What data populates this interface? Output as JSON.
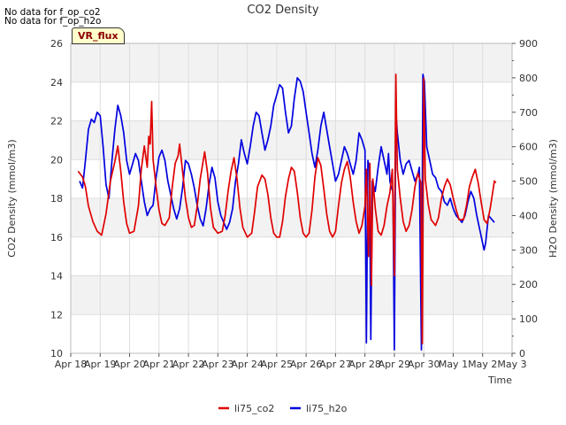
{
  "notices": [
    "No data for f_op_co2",
    "No data for f_op_h2o"
  ],
  "badge": "VR_flux",
  "chart_data": {
    "type": "line",
    "title": "CO2 Density",
    "xlabel": "Time",
    "ylabel": "CO2 Density (mmol/m3)",
    "y2label": "H2O Density (mmol/m3)",
    "x_ticks": [
      "Apr 18",
      "Apr 19",
      "Apr 20",
      "Apr 21",
      "Apr 22",
      "Apr 23",
      "Apr 24",
      "Apr 25",
      "Apr 26",
      "Apr 27",
      "Apr 28",
      "Apr 29",
      "Apr 30",
      "May 1",
      "May 2",
      "May 3"
    ],
    "xlim": [
      0,
      15
    ],
    "ylim": [
      10,
      26
    ],
    "y_ticks": [
      10,
      12,
      14,
      16,
      18,
      20,
      22,
      24,
      26
    ],
    "y2lim": [
      0,
      900
    ],
    "y2_ticks": [
      0,
      100,
      200,
      300,
      400,
      500,
      600,
      700,
      800,
      900
    ],
    "grid": true,
    "legend_position": "bottom-center",
    "series": [
      {
        "name": "li75_co2",
        "axis": "left",
        "color": "#e00000",
        "points": [
          [
            0.25,
            19.4
          ],
          [
            0.4,
            19.1
          ],
          [
            0.5,
            18.6
          ],
          [
            0.6,
            17.6
          ],
          [
            0.75,
            16.8
          ],
          [
            0.9,
            16.3
          ],
          [
            1.05,
            16.1
          ],
          [
            1.2,
            17.2
          ],
          [
            1.35,
            18.9
          ],
          [
            1.5,
            19.9
          ],
          [
            1.6,
            20.7
          ],
          [
            1.7,
            19.4
          ],
          [
            1.8,
            17.8
          ],
          [
            1.9,
            16.7
          ],
          [
            2.0,
            16.2
          ],
          [
            2.15,
            16.3
          ],
          [
            2.3,
            17.6
          ],
          [
            2.4,
            19.5
          ],
          [
            2.5,
            20.7
          ],
          [
            2.6,
            19.6
          ],
          [
            2.65,
            21.2
          ],
          [
            2.7,
            20.8
          ],
          [
            2.75,
            23.0
          ],
          [
            2.8,
            20.0
          ],
          [
            2.9,
            18.6
          ],
          [
            3.0,
            17.4
          ],
          [
            3.1,
            16.7
          ],
          [
            3.2,
            16.6
          ],
          [
            3.35,
            17.0
          ],
          [
            3.45,
            18.6
          ],
          [
            3.55,
            19.8
          ],
          [
            3.65,
            20.2
          ],
          [
            3.7,
            20.8
          ],
          [
            3.8,
            19.4
          ],
          [
            3.9,
            18.0
          ],
          [
            4.0,
            17.0
          ],
          [
            4.1,
            16.5
          ],
          [
            4.2,
            16.6
          ],
          [
            4.3,
            17.6
          ],
          [
            4.4,
            19.0
          ],
          [
            4.55,
            20.4
          ],
          [
            4.65,
            19.3
          ],
          [
            4.75,
            17.5
          ],
          [
            4.85,
            16.5
          ],
          [
            5.0,
            16.2
          ],
          [
            5.15,
            16.3
          ],
          [
            5.25,
            17.1
          ],
          [
            5.35,
            18.4
          ],
          [
            5.45,
            19.4
          ],
          [
            5.55,
            20.1
          ],
          [
            5.65,
            19.0
          ],
          [
            5.75,
            17.5
          ],
          [
            5.85,
            16.5
          ],
          [
            6.0,
            16.0
          ],
          [
            6.15,
            16.2
          ],
          [
            6.25,
            17.3
          ],
          [
            6.35,
            18.6
          ],
          [
            6.5,
            19.2
          ],
          [
            6.6,
            19.0
          ],
          [
            6.7,
            18.2
          ],
          [
            6.8,
            17.0
          ],
          [
            6.9,
            16.2
          ],
          [
            7.0,
            16.0
          ],
          [
            7.1,
            16.0
          ],
          [
            7.2,
            16.8
          ],
          [
            7.3,
            18.1
          ],
          [
            7.4,
            19.0
          ],
          [
            7.5,
            19.6
          ],
          [
            7.6,
            19.4
          ],
          [
            7.7,
            18.3
          ],
          [
            7.8,
            17.0
          ],
          [
            7.9,
            16.2
          ],
          [
            8.0,
            16.0
          ],
          [
            8.1,
            16.2
          ],
          [
            8.2,
            17.4
          ],
          [
            8.3,
            19.1
          ],
          [
            8.4,
            20.1
          ],
          [
            8.5,
            19.7
          ],
          [
            8.6,
            18.5
          ],
          [
            8.7,
            17.2
          ],
          [
            8.8,
            16.3
          ],
          [
            8.9,
            16.0
          ],
          [
            9.0,
            16.3
          ],
          [
            9.1,
            17.6
          ],
          [
            9.2,
            18.8
          ],
          [
            9.3,
            19.5
          ],
          [
            9.4,
            19.9
          ],
          [
            9.5,
            19.1
          ],
          [
            9.6,
            17.8
          ],
          [
            9.7,
            16.8
          ],
          [
            9.8,
            16.2
          ],
          [
            9.9,
            16.6
          ],
          [
            10.0,
            17.6
          ],
          [
            10.05,
            19.5
          ],
          [
            10.12,
            15.0
          ],
          [
            10.17,
            19.8
          ],
          [
            10.22,
            13.5
          ],
          [
            10.27,
            19.0
          ],
          [
            10.35,
            17.5
          ],
          [
            10.45,
            16.3
          ],
          [
            10.55,
            16.1
          ],
          [
            10.65,
            16.6
          ],
          [
            10.75,
            17.6
          ],
          [
            10.85,
            18.3
          ],
          [
            10.93,
            19.5
          ],
          [
            11.0,
            14.0
          ],
          [
            11.05,
            24.4
          ],
          [
            11.1,
            19.5
          ],
          [
            11.2,
            18.0
          ],
          [
            11.3,
            16.8
          ],
          [
            11.4,
            16.3
          ],
          [
            11.5,
            16.6
          ],
          [
            11.6,
            17.4
          ],
          [
            11.7,
            18.6
          ],
          [
            11.8,
            19.3
          ],
          [
            11.9,
            18.8
          ],
          [
            11.95,
            10.5
          ],
          [
            12.0,
            24.2
          ],
          [
            12.05,
            19.0
          ],
          [
            12.15,
            17.7
          ],
          [
            12.25,
            16.9
          ],
          [
            12.4,
            16.6
          ],
          [
            12.5,
            17.0
          ],
          [
            12.6,
            18.0
          ],
          [
            12.7,
            18.6
          ],
          [
            12.8,
            19.0
          ],
          [
            12.9,
            18.7
          ],
          [
            13.0,
            18.0
          ],
          [
            13.1,
            17.4
          ],
          [
            13.2,
            16.9
          ],
          [
            13.35,
            16.9
          ],
          [
            13.45,
            17.6
          ],
          [
            13.55,
            18.6
          ],
          [
            13.65,
            19.1
          ],
          [
            13.75,
            19.5
          ],
          [
            13.85,
            18.8
          ],
          [
            13.95,
            17.8
          ],
          [
            14.05,
            16.9
          ],
          [
            14.15,
            16.7
          ],
          [
            14.25,
            17.4
          ],
          [
            14.35,
            18.4
          ],
          [
            14.4,
            18.9
          ],
          [
            14.45,
            18.8
          ]
        ]
      },
      {
        "name": "li75_h2o",
        "axis": "right",
        "color": "#0000e0",
        "points": [
          [
            0.3,
            500
          ],
          [
            0.4,
            480
          ],
          [
            0.5,
            560
          ],
          [
            0.6,
            650
          ],
          [
            0.7,
            680
          ],
          [
            0.8,
            670
          ],
          [
            0.9,
            700
          ],
          [
            1.0,
            690
          ],
          [
            1.1,
            600
          ],
          [
            1.2,
            490
          ],
          [
            1.3,
            450
          ],
          [
            1.4,
            560
          ],
          [
            1.5,
            650
          ],
          [
            1.6,
            720
          ],
          [
            1.7,
            690
          ],
          [
            1.8,
            640
          ],
          [
            1.9,
            560
          ],
          [
            2.0,
            520
          ],
          [
            2.1,
            550
          ],
          [
            2.2,
            580
          ],
          [
            2.3,
            560
          ],
          [
            2.4,
            500
          ],
          [
            2.5,
            440
          ],
          [
            2.6,
            400
          ],
          [
            2.7,
            420
          ],
          [
            2.8,
            430
          ],
          [
            2.9,
            510
          ],
          [
            3.0,
            570
          ],
          [
            3.1,
            590
          ],
          [
            3.2,
            560
          ],
          [
            3.3,
            500
          ],
          [
            3.4,
            460
          ],
          [
            3.5,
            420
          ],
          [
            3.6,
            390
          ],
          [
            3.7,
            420
          ],
          [
            3.8,
            480
          ],
          [
            3.9,
            560
          ],
          [
            4.0,
            550
          ],
          [
            4.1,
            520
          ],
          [
            4.2,
            480
          ],
          [
            4.3,
            430
          ],
          [
            4.4,
            390
          ],
          [
            4.5,
            370
          ],
          [
            4.6,
            420
          ],
          [
            4.7,
            490
          ],
          [
            4.8,
            540
          ],
          [
            4.9,
            510
          ],
          [
            5.0,
            440
          ],
          [
            5.1,
            400
          ],
          [
            5.2,
            380
          ],
          [
            5.3,
            360
          ],
          [
            5.4,
            380
          ],
          [
            5.5,
            420
          ],
          [
            5.6,
            500
          ],
          [
            5.7,
            550
          ],
          [
            5.8,
            620
          ],
          [
            5.9,
            580
          ],
          [
            6.0,
            550
          ],
          [
            6.1,
            600
          ],
          [
            6.2,
            660
          ],
          [
            6.3,
            700
          ],
          [
            6.4,
            690
          ],
          [
            6.5,
            640
          ],
          [
            6.6,
            590
          ],
          [
            6.7,
            620
          ],
          [
            6.8,
            660
          ],
          [
            6.9,
            720
          ],
          [
            7.0,
            750
          ],
          [
            7.1,
            780
          ],
          [
            7.2,
            770
          ],
          [
            7.3,
            700
          ],
          [
            7.4,
            640
          ],
          [
            7.5,
            660
          ],
          [
            7.6,
            740
          ],
          [
            7.7,
            800
          ],
          [
            7.8,
            790
          ],
          [
            7.9,
            760
          ],
          [
            8.0,
            700
          ],
          [
            8.1,
            640
          ],
          [
            8.2,
            580
          ],
          [
            8.3,
            540
          ],
          [
            8.4,
            590
          ],
          [
            8.5,
            660
          ],
          [
            8.6,
            700
          ],
          [
            8.7,
            650
          ],
          [
            8.8,
            600
          ],
          [
            8.9,
            550
          ],
          [
            9.0,
            500
          ],
          [
            9.1,
            520
          ],
          [
            9.2,
            560
          ],
          [
            9.3,
            600
          ],
          [
            9.4,
            580
          ],
          [
            9.5,
            550
          ],
          [
            9.6,
            520
          ],
          [
            9.7,
            560
          ],
          [
            9.8,
            640
          ],
          [
            9.9,
            620
          ],
          [
            10.0,
            590
          ],
          [
            10.05,
            30
          ],
          [
            10.1,
            560
          ],
          [
            10.15,
            540
          ],
          [
            10.2,
            40
          ],
          [
            10.25,
            500
          ],
          [
            10.35,
            470
          ],
          [
            10.45,
            540
          ],
          [
            10.55,
            600
          ],
          [
            10.65,
            560
          ],
          [
            10.75,
            520
          ],
          [
            10.8,
            580
          ],
          [
            10.85,
            500
          ],
          [
            10.9,
            480
          ],
          [
            10.95,
            470
          ],
          [
            11.0,
            10
          ],
          [
            11.05,
            700
          ],
          [
            11.1,
            640
          ],
          [
            11.2,
            560
          ],
          [
            11.3,
            520
          ],
          [
            11.4,
            550
          ],
          [
            11.5,
            560
          ],
          [
            11.6,
            530
          ],
          [
            11.7,
            500
          ],
          [
            11.8,
            520
          ],
          [
            11.85,
            540
          ],
          [
            11.92,
            10
          ],
          [
            11.97,
            810
          ],
          [
            12.02,
            790
          ],
          [
            12.1,
            600
          ],
          [
            12.2,
            560
          ],
          [
            12.3,
            520
          ],
          [
            12.4,
            510
          ],
          [
            12.5,
            480
          ],
          [
            12.6,
            470
          ],
          [
            12.7,
            440
          ],
          [
            12.8,
            430
          ],
          [
            12.9,
            450
          ],
          [
            13.0,
            420
          ],
          [
            13.1,
            400
          ],
          [
            13.2,
            390
          ],
          [
            13.3,
            380
          ],
          [
            13.4,
            400
          ],
          [
            13.5,
            440
          ],
          [
            13.6,
            470
          ],
          [
            13.7,
            450
          ],
          [
            13.8,
            400
          ],
          [
            13.9,
            360
          ],
          [
            14.0,
            320
          ],
          [
            14.05,
            300
          ],
          [
            14.1,
            320
          ],
          [
            14.15,
            360
          ],
          [
            14.2,
            400
          ],
          [
            14.3,
            390
          ],
          [
            14.4,
            380
          ]
        ]
      }
    ]
  }
}
